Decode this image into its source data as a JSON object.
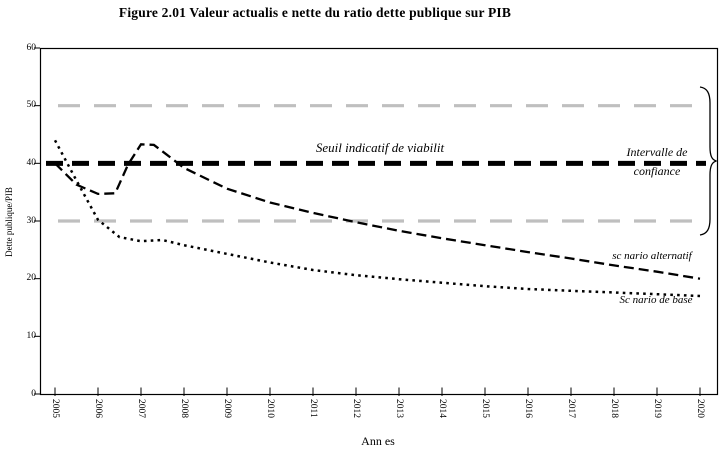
{
  "figure_title": "Figure 2.01 Valeur actualis e nette du ratio dette publique sur PIB",
  "chart_data": {
    "type": "line",
    "title": "Figure 2.01 Valeur actualis e nette du ratio dette publique sur PIB",
    "xlabel": "Ann es",
    "ylabel": "Dette publique/PIB",
    "xlim": [
      2005,
      2020
    ],
    "ylim": [
      0,
      60
    ],
    "grid": false,
    "legend_position": "inline-annotations",
    "y_ticks": [
      0,
      10,
      20,
      30,
      40,
      50,
      60
    ],
    "x_ticks": [
      2005,
      2006,
      2007,
      2008,
      2009,
      2010,
      2011,
      2012,
      2013,
      2014,
      2015,
      2016,
      2017,
      2018,
      2019,
      2020
    ],
    "colors": {
      "series_black": "#000000",
      "interval_gray": "#bfbfbf"
    },
    "reference_lines": [
      {
        "name": "seuil-indicatif-viabilite",
        "value": 40,
        "style": "thick_black_dashed",
        "label": "Seuil indicatif de viabilit"
      },
      {
        "name": "intervalle-confiance-haut",
        "value": 50,
        "style": "gray_dashed"
      },
      {
        "name": "intervalle-confiance-bas",
        "value": 30,
        "style": "gray_dashed"
      }
    ],
    "annotations": {
      "seuil_label": "Seuil indicatif de viabilit",
      "intervalle_line1": "Intervalle de",
      "intervalle_line2": "confiance",
      "alternatif_label": "sc nario alternatif",
      "base_label": "Sc nario de base"
    },
    "series": [
      {
        "name": "sc nario alternatif",
        "style": "dashed",
        "x": [
          2005,
          2005.5,
          2006,
          2006.4,
          2006.7,
          2007,
          2007.3,
          2007.6,
          2008,
          2009,
          2010,
          2011,
          2012,
          2013,
          2014,
          2015,
          2016,
          2017,
          2018,
          2019,
          2020
        ],
        "values": [
          40.0,
          36.3,
          34.7,
          34.8,
          39.8,
          43.3,
          43.2,
          41.5,
          39.2,
          35.6,
          33.2,
          31.4,
          29.8,
          28.3,
          27.0,
          25.8,
          24.6,
          23.5,
          22.3,
          21.2,
          20.0
        ]
      },
      {
        "name": "Sc nario de base",
        "style": "dotted",
        "x": [
          2005,
          2005.5,
          2006,
          2006.5,
          2007,
          2007.5,
          2008,
          2009,
          2010,
          2011,
          2012,
          2013,
          2014,
          2015,
          2016,
          2017,
          2018,
          2019,
          2020
        ],
        "values": [
          44.0,
          37.0,
          30.2,
          27.2,
          26.5,
          26.7,
          25.8,
          24.3,
          22.8,
          21.5,
          20.6,
          19.9,
          19.3,
          18.7,
          18.2,
          17.9,
          17.6,
          17.3,
          17.0
        ]
      }
    ]
  }
}
